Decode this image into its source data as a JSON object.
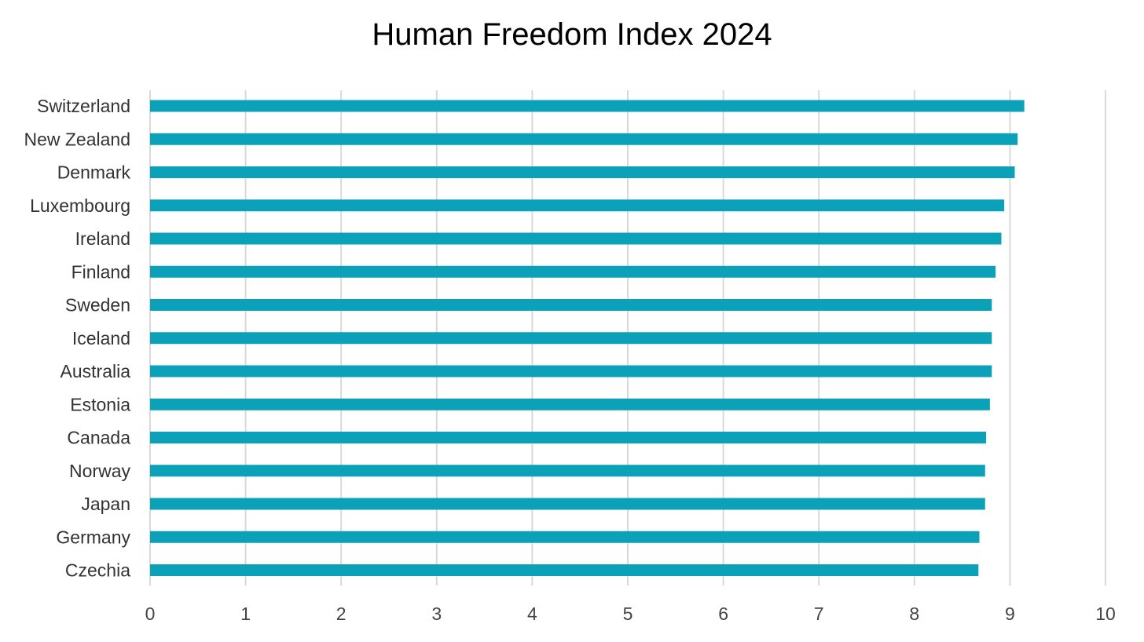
{
  "chart_data": {
    "type": "bar",
    "orientation": "horizontal",
    "title": "Human Freedom Index 2024",
    "xlabel": "",
    "ylabel": "",
    "categories": [
      "Switzerland",
      "New Zealand",
      "Denmark",
      "Luxembourg",
      "Ireland",
      "Finland",
      "Sweden",
      "Iceland",
      "Australia",
      "Estonia",
      "Canada",
      "Norway",
      "Japan",
      "Germany",
      "Czechia"
    ],
    "values": [
      9.15,
      9.08,
      9.05,
      8.94,
      8.91,
      8.85,
      8.81,
      8.81,
      8.81,
      8.79,
      8.75,
      8.74,
      8.74,
      8.68,
      8.67
    ],
    "xlim": [
      0,
      10
    ],
    "xticks": [
      "0",
      "1",
      "2",
      "3",
      "4",
      "5",
      "6",
      "7",
      "8",
      "9",
      "10"
    ],
    "grid": "vertical",
    "legend": "none",
    "bar_color": "#0aa1b9",
    "grid_color": "#d9d9d9"
  }
}
